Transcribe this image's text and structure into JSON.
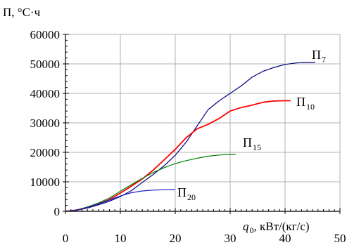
{
  "chart_data": {
    "type": "line",
    "title": "",
    "ylabel": "П, °С·ч",
    "xlabel_main": "q",
    "xlabel_sub": "0",
    "xlabel_units": ", кВт/(кг/с)",
    "xlim": [
      0,
      50
    ],
    "ylim": [
      0,
      60000
    ],
    "xticks": [
      0,
      10,
      20,
      30,
      40,
      50
    ],
    "yticks": [
      0,
      10000,
      20000,
      30000,
      40000,
      50000,
      60000
    ],
    "xtick_labels": [
      "0",
      "10",
      "20",
      "30",
      "40",
      "50"
    ],
    "ytick_labels": [
      "0",
      "10000",
      "20000",
      "30000",
      "40000",
      "50000",
      "60000"
    ],
    "grid": true,
    "legend": "none",
    "series": [
      {
        "name": "П",
        "sub": "7",
        "color": "#00007f",
        "x": [
          0,
          2,
          4,
          6,
          8,
          10,
          12,
          14,
          16,
          18,
          20,
          22,
          24,
          26,
          28,
          30,
          32,
          34,
          36,
          38,
          40,
          42,
          44,
          45.5
        ],
        "y": [
          0,
          300,
          1100,
          2200,
          3400,
          5000,
          7000,
          9800,
          12500,
          15500,
          19000,
          23500,
          29000,
          34500,
          37500,
          40000,
          42500,
          45500,
          47500,
          48800,
          49800,
          50300,
          50500,
          50500
        ]
      },
      {
        "name": "П",
        "sub": "10",
        "color": "#ff0000",
        "x": [
          0,
          2,
          4,
          6,
          8,
          10,
          12,
          14,
          16,
          18,
          20,
          22,
          24,
          26,
          28,
          30,
          32,
          34,
          36,
          38,
          40,
          41
        ],
        "y": [
          0,
          400,
          1300,
          2500,
          4000,
          6200,
          8500,
          11000,
          14000,
          17500,
          21000,
          25000,
          28000,
          29500,
          31500,
          34000,
          35200,
          36000,
          37000,
          37400,
          37500,
          37500
        ]
      },
      {
        "name": "П",
        "sub": "15",
        "color": "#007f00",
        "x": [
          0,
          2,
          4,
          6,
          8,
          10,
          12,
          14,
          16,
          18,
          20,
          22,
          24,
          26,
          28,
          30,
          31
        ],
        "y": [
          0,
          400,
          1500,
          2800,
          4500,
          6800,
          9000,
          11200,
          13200,
          14800,
          16200,
          17200,
          18000,
          18700,
          19100,
          19300,
          19300
        ]
      },
      {
        "name": "П",
        "sub": "20",
        "color": "#1f1fbf",
        "x": [
          0,
          2,
          4,
          6,
          8,
          10,
          12,
          14,
          16,
          18,
          20
        ],
        "y": [
          0,
          400,
          1300,
          2500,
          3800,
          5200,
          6300,
          6900,
          7200,
          7300,
          7400
        ]
      }
    ]
  }
}
